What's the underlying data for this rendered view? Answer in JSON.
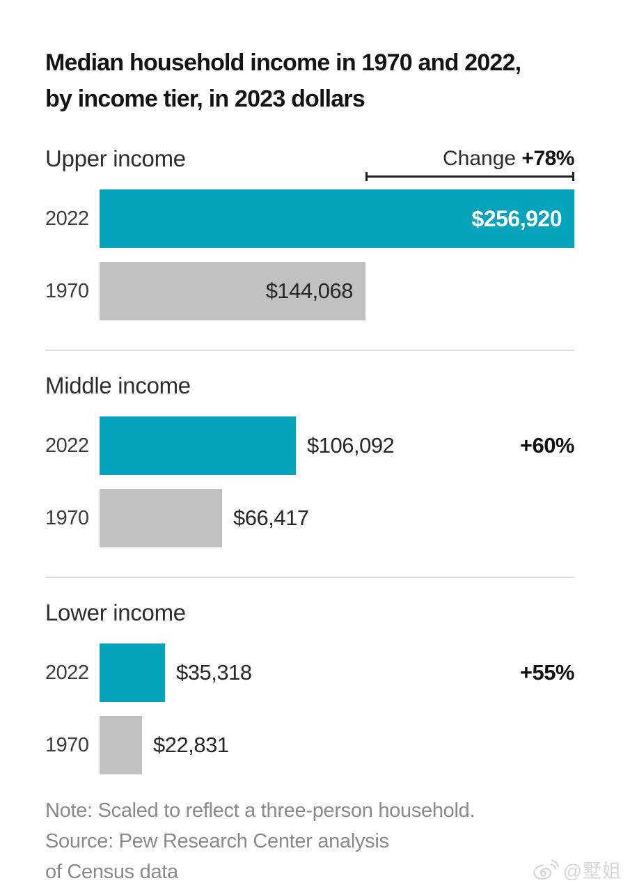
{
  "title": {
    "lines": [
      "Median household income in 1970 and 2022,",
      "by income tier, in 2023 dollars"
    ]
  },
  "chart_data": {
    "type": "bar",
    "orientation": "horizontal",
    "title": "Median household income in 1970 and 2022, by income tier, in 2023 dollars",
    "categories": [
      "Upper income",
      "Middle income",
      "Lower income"
    ],
    "series": [
      {
        "name": "2022",
        "color": "#06a3bc",
        "values": [
          256920,
          106092,
          35318
        ]
      },
      {
        "name": "1970",
        "color": "#c1c1c1",
        "values": [
          144068,
          66417,
          22831
        ]
      }
    ],
    "xlim": [
      0,
      256920
    ],
    "grid": false,
    "legend_position": "none",
    "changes": [
      "+78%",
      "+60%",
      "+55%"
    ],
    "tiers": [
      {
        "label": "Upper income",
        "change_word": "Change",
        "change": "+78%",
        "rows": [
          {
            "year": "2022",
            "value": 256920,
            "display": "$256,920"
          },
          {
            "year": "1970",
            "value": 144068,
            "display": "$144,068"
          }
        ]
      },
      {
        "label": "Middle income",
        "change": "+60%",
        "rows": [
          {
            "year": "2022",
            "value": 106092,
            "display": "$106,092"
          },
          {
            "year": "1970",
            "value": 66417,
            "display": "$66,417"
          }
        ]
      },
      {
        "label": "Lower income",
        "change": "+55%",
        "rows": [
          {
            "year": "2022",
            "value": 35318,
            "display": "$35,318"
          },
          {
            "year": "1970",
            "value": 22831,
            "display": "$22,831"
          }
        ]
      }
    ]
  },
  "note": {
    "lines": [
      "Note: Scaled to reflect a three-person household.",
      "Source: Pew Research Center analysis",
      "of Census data"
    ]
  },
  "watermark": {
    "text": "@墅姐",
    "icon": "weibo-icon"
  },
  "colors": {
    "bar_2022": "#06a3bc",
    "bar_1970": "#c1c1c1",
    "title_text": "#141414",
    "note_text": "#8a8a8a",
    "watermark": "#d7d7d7"
  }
}
